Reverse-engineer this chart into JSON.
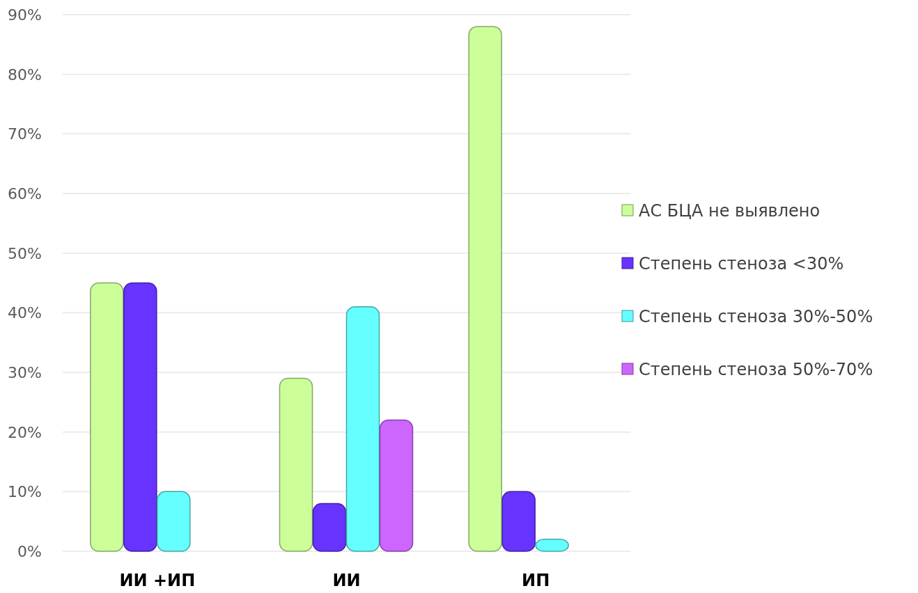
{
  "chart_data": {
    "type": "bar",
    "categories": [
      "ИИ +ИП",
      "ИИ",
      "ИП"
    ],
    "series": [
      {
        "name": "АС БЦА  не выявлено",
        "color": "#ccff99",
        "values": [
          45,
          29,
          88
        ]
      },
      {
        "name": "Степень стеноза <30%",
        "color": "#6633ff",
        "values": [
          45,
          8,
          10
        ]
      },
      {
        "name": "Степень стеноза 30%-50%",
        "color": "#66ffff",
        "values": [
          10,
          41,
          2
        ]
      },
      {
        "name": "Степень стеноза 50%-70%",
        "color": "#cc66ff",
        "values": [
          0,
          22,
          0
        ]
      }
    ],
    "ylim": [
      0,
      90
    ],
    "yticks": [
      {
        "value": 0,
        "label": "0%"
      },
      {
        "value": 10,
        "label": "10%"
      },
      {
        "value": 20,
        "label": "20%"
      },
      {
        "value": 30,
        "label": "30%"
      },
      {
        "value": 40,
        "label": "40%"
      },
      {
        "value": 50,
        "label": "50%"
      },
      {
        "value": 60,
        "label": "60%"
      },
      {
        "value": 70,
        "label": "70%"
      },
      {
        "value": 80,
        "label": "80%"
      },
      {
        "value": 90,
        "label": "90%"
      }
    ],
    "grid": "y",
    "legend": "right"
  }
}
